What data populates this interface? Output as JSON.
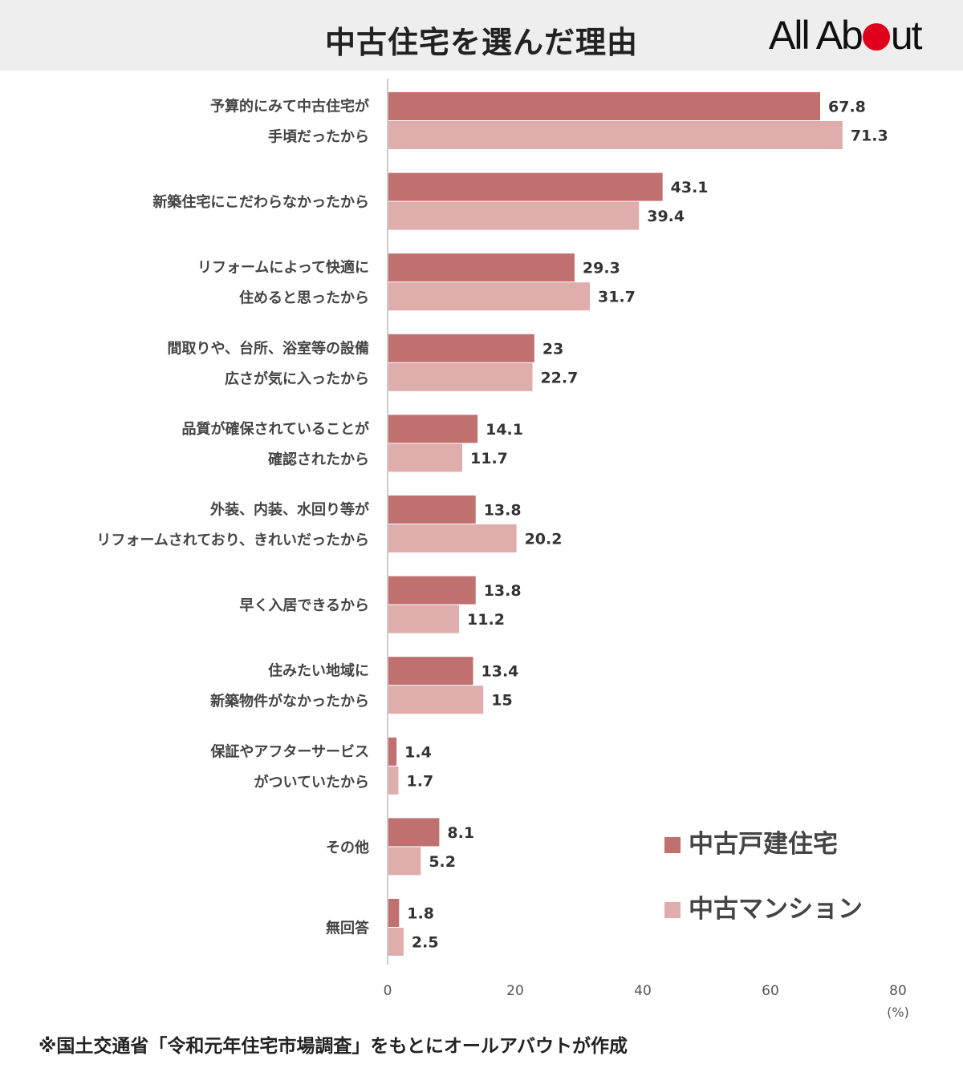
{
  "header": {
    "title": "中古住宅を選んだ理由",
    "logo_text_before": "All Ab",
    "logo_text_after": "ut"
  },
  "colors": {
    "series1": "#c0706e",
    "series2": "#dfadab",
    "logo_dot": "#e0001b",
    "axis": "#cccccc"
  },
  "chart_data": {
    "type": "bar",
    "orientation": "horizontal",
    "categories": [
      [
        "予算的にみて中古住宅が",
        "手頃だったから"
      ],
      [
        "新築住宅にこだわらなかったから"
      ],
      [
        "リフォームによって快適に",
        "住めると思ったから"
      ],
      [
        "間取りや、台所、浴室等の設備",
        "広さが気に入ったから"
      ],
      [
        "品質が確保されていることが",
        "確認されたから"
      ],
      [
        "外装、内装、水回り等が",
        "リフォームされており、きれいだったから"
      ],
      [
        "早く入居できるから"
      ],
      [
        "住みたい地域に",
        "新築物件がなかったから"
      ],
      [
        "保証やアフターサービス",
        "がついていたから"
      ],
      [
        "その他"
      ],
      [
        "無回答"
      ]
    ],
    "series": [
      {
        "name": "中古戸建住宅",
        "values": [
          67.8,
          43.1,
          29.3,
          23,
          14.1,
          13.8,
          13.8,
          13.4,
          1.4,
          8.1,
          1.8
        ]
      },
      {
        "name": "中古マンション",
        "values": [
          71.3,
          39.4,
          31.7,
          22.7,
          11.7,
          20.2,
          11.2,
          15,
          1.7,
          5.2,
          2.5
        ]
      }
    ],
    "xlim": [
      0,
      80
    ],
    "xticks": [
      "0",
      "20",
      "40",
      "60",
      "80"
    ],
    "xunit": "(%)",
    "legend_position": "bottom-right",
    "grid": false
  },
  "footnote": "※国土交通省「令和元年住宅市場調査」をもとにオールアバウトが作成"
}
